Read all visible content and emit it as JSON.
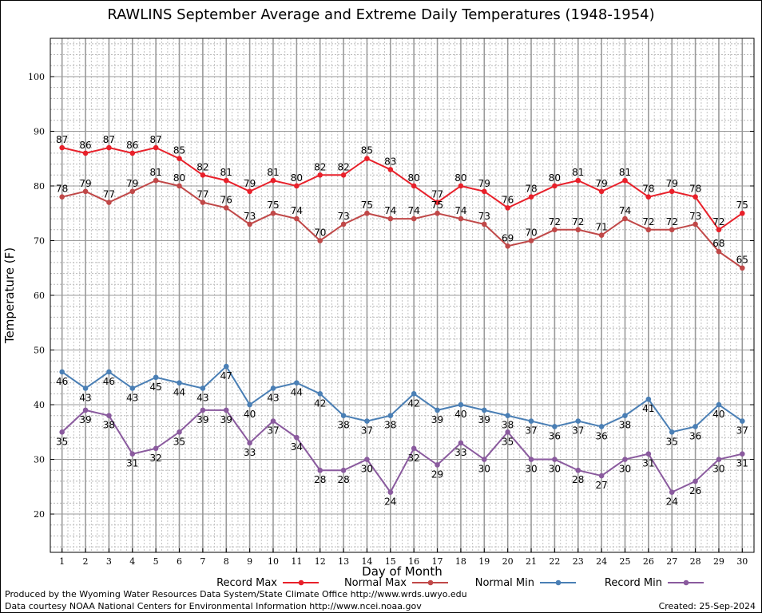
{
  "chart_data": {
    "type": "line",
    "title": "RAWLINS September Average and Extreme Daily Temperatures (1948-1954)",
    "xlabel": "Day of Month",
    "ylabel": "Temperature (F)",
    "x": [
      1,
      2,
      3,
      4,
      5,
      6,
      7,
      8,
      9,
      10,
      11,
      12,
      13,
      14,
      15,
      16,
      17,
      18,
      19,
      20,
      21,
      22,
      23,
      24,
      25,
      26,
      27,
      28,
      29,
      30
    ],
    "xlim": [
      0.5,
      30.5
    ],
    "ylim": [
      13,
      107
    ],
    "yticks": [
      20,
      30,
      40,
      50,
      60,
      70,
      80,
      90,
      100
    ],
    "grid": true,
    "legend_position": "bottom",
    "series": [
      {
        "name": "Record Max",
        "color": "#e8202a",
        "values": [
          87,
          86,
          87,
          86,
          87,
          85,
          82,
          81,
          79,
          81,
          80,
          82,
          82,
          85,
          83,
          80,
          77,
          80,
          79,
          76,
          78,
          80,
          81,
          79,
          81,
          78,
          79,
          78,
          72,
          75
        ]
      },
      {
        "name": "Normal Max",
        "color": "#c04848",
        "values": [
          78,
          79,
          77,
          79,
          81,
          80,
          77,
          76,
          73,
          75,
          74,
          70,
          73,
          75,
          74,
          74,
          75,
          74,
          73,
          69,
          70,
          72,
          72,
          71,
          74,
          72,
          72,
          73,
          68,
          65
        ]
      },
      {
        "name": "Normal Min",
        "color": "#4a7fb5",
        "values": [
          46,
          43,
          46,
          43,
          45,
          44,
          43,
          47,
          40,
          43,
          44,
          42,
          38,
          37,
          38,
          42,
          39,
          40,
          39,
          38,
          37,
          36,
          37,
          36,
          38,
          41,
          35,
          36,
          40,
          37
        ]
      },
      {
        "name": "Record Min",
        "color": "#8a5a9e",
        "values": [
          35,
          39,
          38,
          31,
          32,
          35,
          39,
          39,
          33,
          37,
          34,
          28,
          28,
          30,
          24,
          32,
          29,
          33,
          30,
          35,
          30,
          30,
          28,
          27,
          30,
          31,
          24,
          26,
          30,
          31
        ]
      }
    ]
  },
  "footer": {
    "produced_by": "Produced by the Wyoming Water Resources Data System/State Climate Office http://www.wrds.uwyo.edu",
    "courtesy": "Data courtesy NOAA National Centers for Environmental Information http://www.ncei.noaa.gov",
    "created": "Created: 25-Sep-2024"
  }
}
